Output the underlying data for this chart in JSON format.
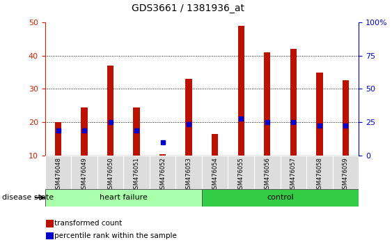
{
  "title": "GDS3661 / 1381936_at",
  "categories": [
    "GSM476048",
    "GSM476049",
    "GSM476050",
    "GSM476051",
    "GSM476052",
    "GSM476053",
    "GSM476054",
    "GSM476055",
    "GSM476056",
    "GSM476057",
    "GSM476058",
    "GSM476059"
  ],
  "red_values": [
    20,
    24.5,
    37,
    24.5,
    10.5,
    33,
    16.5,
    49,
    41,
    42,
    35,
    32.5
  ],
  "blue_values": [
    17.5,
    17.5,
    20,
    17.5,
    14,
    19.5,
    null,
    21,
    20,
    20,
    19,
    19
  ],
  "ylim_left": [
    10,
    50
  ],
  "ylim_right": [
    0,
    100
  ],
  "yticks_left": [
    10,
    20,
    30,
    40,
    50
  ],
  "yticks_right": [
    0,
    25,
    50,
    75,
    100
  ],
  "ytick_labels_right": [
    "0",
    "25",
    "50",
    "75",
    "100%"
  ],
  "heart_failure_indices": [
    0,
    1,
    2,
    3,
    4,
    5
  ],
  "control_indices": [
    6,
    7,
    8,
    9,
    10,
    11
  ],
  "bar_color_red": "#BB1100",
  "bar_color_blue": "#0000CC",
  "heart_failure_color": "#AAFFAA",
  "control_color": "#33CC44",
  "group_label_hf": "heart failure",
  "group_label_ctrl": "control",
  "disease_state_label": "disease state",
  "legend_red": "transformed count",
  "legend_blue": "percentile rank within the sample",
  "bar_width": 0.25,
  "bg_color": "#FFFFFF",
  "tick_label_color_left": "#CC2200",
  "tick_label_color_right": "#0000CC"
}
